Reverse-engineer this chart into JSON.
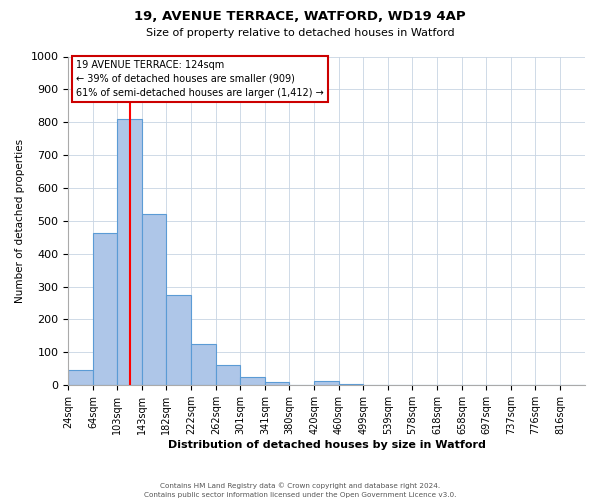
{
  "title": "19, AVENUE TERRACE, WATFORD, WD19 4AP",
  "subtitle": "Size of property relative to detached houses in Watford",
  "xlabel": "Distribution of detached houses by size in Watford",
  "ylabel": "Number of detached properties",
  "bin_labels": [
    "24sqm",
    "64sqm",
    "103sqm",
    "143sqm",
    "182sqm",
    "222sqm",
    "262sqm",
    "301sqm",
    "341sqm",
    "380sqm",
    "420sqm",
    "460sqm",
    "499sqm",
    "539sqm",
    "578sqm",
    "618sqm",
    "658sqm",
    "697sqm",
    "737sqm",
    "776sqm",
    "816sqm"
  ],
  "bar_heights": [
    47,
    462,
    810,
    520,
    275,
    125,
    60,
    25,
    10,
    0,
    13,
    5,
    0,
    0,
    0,
    0,
    0,
    0,
    0,
    0,
    0
  ],
  "bin_edges": [
    24,
    64,
    103,
    143,
    182,
    222,
    262,
    301,
    341,
    380,
    420,
    460,
    499,
    539,
    578,
    618,
    658,
    697,
    737,
    776,
    816,
    856
  ],
  "bar_color": "#aec6e8",
  "bar_edge_color": "#5b9bd5",
  "red_line_x": 124,
  "ylim": [
    0,
    1000
  ],
  "yticks": [
    0,
    100,
    200,
    300,
    400,
    500,
    600,
    700,
    800,
    900,
    1000
  ],
  "annotation_title": "19 AVENUE TERRACE: 124sqm",
  "annotation_line1": "← 39% of detached houses are smaller (909)",
  "annotation_line2": "61% of semi-detached houses are larger (1,412) →",
  "annotation_box_color": "#ffffff",
  "annotation_box_edge_color": "#cc0000",
  "footer_line1": "Contains HM Land Registry data © Crown copyright and database right 2024.",
  "footer_line2": "Contains public sector information licensed under the Open Government Licence v3.0.",
  "background_color": "#ffffff",
  "grid_color": "#c8d4e3"
}
